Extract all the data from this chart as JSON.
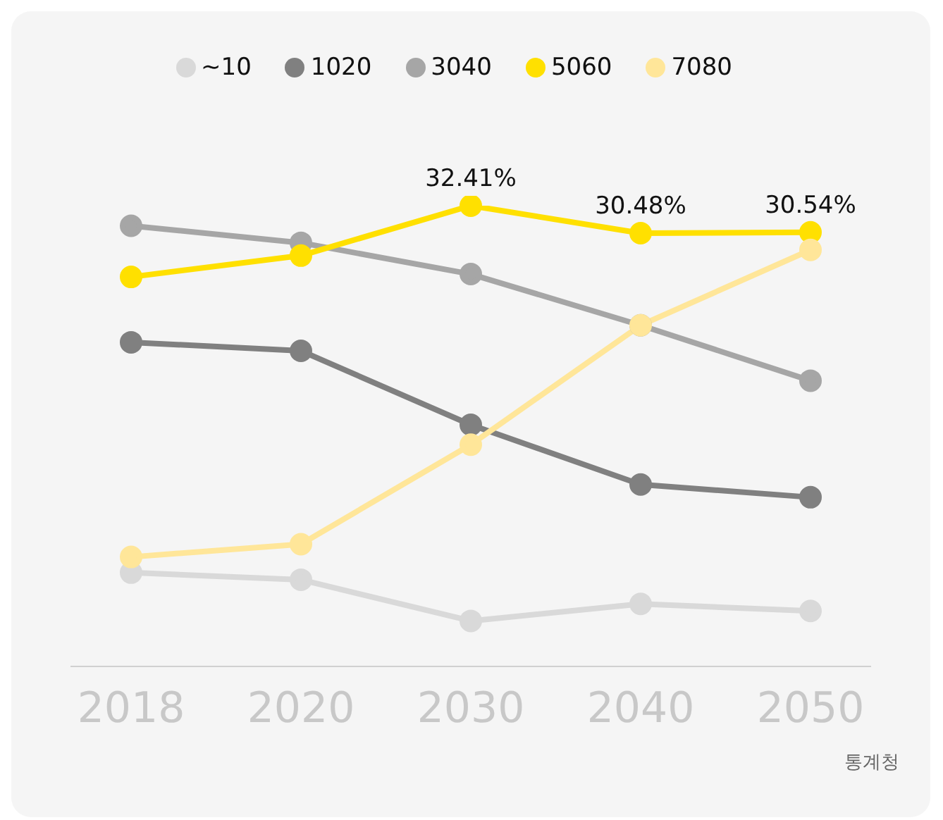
{
  "chart_data": {
    "type": "line",
    "categories": [
      "2018",
      "2020",
      "2030",
      "2040",
      "2050"
    ],
    "series": [
      {
        "name": "~10",
        "color": "#d9d9d9",
        "values": [
          6.6,
          6.1,
          3.2,
          4.4,
          3.9
        ]
      },
      {
        "name": "1020",
        "color": "#808080",
        "values": [
          22.8,
          22.2,
          17.0,
          12.8,
          11.9
        ]
      },
      {
        "name": "3040",
        "color": "#a6a6a6",
        "values": [
          31.0,
          29.8,
          27.6,
          24.0,
          20.1
        ]
      },
      {
        "name": "5060",
        "color": "#ffe000",
        "values": [
          27.4,
          28.9,
          32.41,
          30.48,
          30.54
        ],
        "value_labels": [
          null,
          null,
          "32.41%",
          "30.48%",
          "30.54%"
        ]
      },
      {
        "name": "7080",
        "color": "#ffe699",
        "values": [
          7.7,
          8.6,
          15.6,
          24.0,
          29.3
        ]
      }
    ],
    "tick_labels": "x",
    "legend": "top",
    "marker": "circle",
    "grid": false,
    "annotations": [
      "통계청"
    ]
  }
}
